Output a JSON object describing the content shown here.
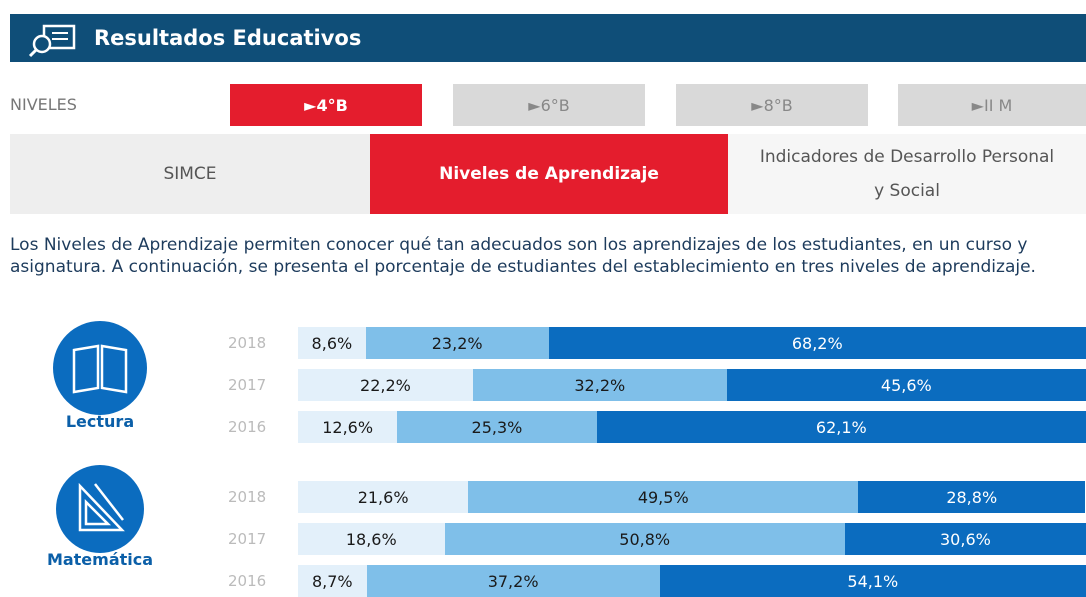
{
  "header": {
    "title": "Resultados Educativos"
  },
  "levels": {
    "label": "NIVELES",
    "tabs": [
      "►4°B",
      "►6°B",
      "►8°B",
      "►II M"
    ],
    "active": 0
  },
  "sections": {
    "tabs": [
      "SIMCE",
      "Niveles de Aprendizaje",
      "Indicadores de Desarrollo Personal y Social"
    ],
    "active": 1
  },
  "description": "Los Niveles de Aprendizaje permiten conocer qué tan adecuados son los aprendizajes de los estudiantes, en un curso y asignatura. A continuación, se presenta el porcentaje de estudiantes del establecimiento en tres niveles de aprendizaje.",
  "colors": [
    "#e3f0fa",
    "#7fbfe9",
    "#0b6cbf"
  ],
  "subjects": [
    {
      "name": "Lectura",
      "rows": [
        {
          "year": "2018",
          "values": [
            8.6,
            23.2,
            68.2
          ],
          "value_labels": [
            "8,6%",
            "23,2%",
            "68,2%"
          ]
        },
        {
          "year": "2017",
          "values": [
            22.2,
            32.2,
            45.6
          ],
          "value_labels": [
            "22,2%",
            "32,2%",
            "45,6%"
          ]
        },
        {
          "year": "2016",
          "values": [
            12.6,
            25.3,
            62.1
          ],
          "value_labels": [
            "12,6%",
            "25,3%",
            "62,1%"
          ]
        }
      ]
    },
    {
      "name": "Matemática",
      "rows": [
        {
          "year": "2018",
          "values": [
            21.6,
            49.5,
            28.8
          ],
          "value_labels": [
            "21,6%",
            "49,5%",
            "28,8%"
          ]
        },
        {
          "year": "2017",
          "values": [
            18.6,
            50.8,
            30.6
          ],
          "value_labels": [
            "18,6%",
            "50,8%",
            "30,6%"
          ]
        },
        {
          "year": "2016",
          "values": [
            8.7,
            37.2,
            54.1
          ],
          "value_labels": [
            "8,7%",
            "37,2%",
            "54,1%"
          ]
        }
      ]
    }
  ]
}
